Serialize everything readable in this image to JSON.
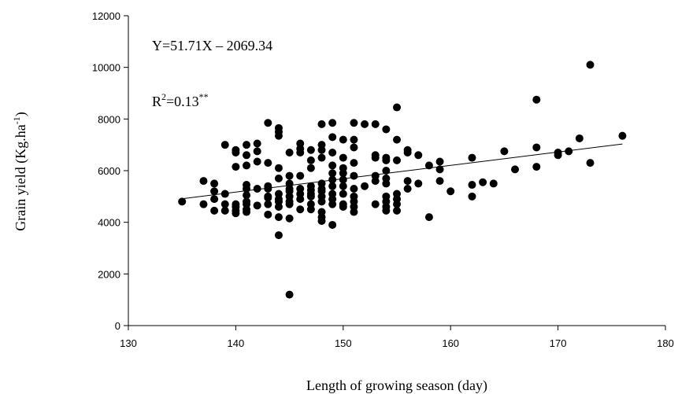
{
  "chart_data": {
    "type": "scatter",
    "xlabel": "Length of growing season (day)",
    "ylabel": [
      "Grain yield (Kg.ha",
      "-1",
      ")"
    ],
    "equation": "Y=51.71X – 2069.34",
    "r2": [
      "R",
      "2",
      "=0.13",
      "**"
    ],
    "color": "#000000",
    "xlim": [
      130,
      180
    ],
    "xticks": [
      130,
      140,
      150,
      160,
      170,
      180
    ],
    "ylim": [
      0,
      12000
    ],
    "yticks": [
      0,
      2000,
      4000,
      6000,
      8000,
      10000,
      12000
    ],
    "trendline": {
      "x": [
        135,
        176
      ],
      "values": [
        4911.5,
        7031.6
      ]
    },
    "x": [
      135,
      137,
      137,
      138,
      138,
      138,
      138,
      139,
      139,
      139,
      139,
      140,
      140,
      140,
      140,
      140,
      140,
      140,
      141,
      141,
      141,
      141,
      141,
      141,
      141,
      141,
      141,
      141,
      142,
      142,
      142,
      142,
      142,
      143,
      143,
      143,
      143,
      143,
      143,
      143,
      143,
      144,
      144,
      144,
      144,
      144,
      144,
      144,
      144,
      144,
      144,
      144,
      145,
      145,
      145,
      145,
      145,
      145,
      145,
      145,
      145,
      145,
      146,
      146,
      146,
      146,
      146,
      146,
      146,
      146,
      147,
      147,
      147,
      147,
      147,
      147,
      147,
      147,
      147,
      148,
      148,
      148,
      148,
      148,
      148,
      148,
      148,
      148,
      148,
      148,
      148,
      149,
      149,
      149,
      149,
      149,
      149,
      149,
      149,
      149,
      149,
      149,
      150,
      150,
      150,
      150,
      150,
      150,
      150,
      150,
      150,
      151,
      151,
      151,
      151,
      151,
      151,
      151,
      151,
      151,
      151,
      152,
      152,
      153,
      153,
      153,
      153,
      153,
      153,
      154,
      154,
      154,
      154,
      154,
      154,
      154,
      154,
      154,
      154,
      155,
      155,
      155,
      155,
      155,
      155,
      155,
      156,
      156,
      156,
      156,
      157,
      157,
      158,
      158,
      159,
      159,
      159,
      160,
      162,
      162,
      162,
      163,
      164,
      165,
      166,
      168,
      168,
      168,
      170,
      170,
      171,
      172,
      173,
      173,
      176
    ],
    "values": [
      4800,
      5600,
      4700,
      5500,
      5200,
      4900,
      4450,
      7000,
      5100,
      4700,
      4450,
      6800,
      6700,
      6150,
      4700,
      4600,
      4450,
      4350,
      7000,
      6600,
      6200,
      5450,
      5300,
      5050,
      4800,
      4700,
      4500,
      4400,
      7050,
      6750,
      6350,
      5300,
      4650,
      7850,
      6300,
      5400,
      5300,
      5000,
      4950,
      4700,
      4300,
      7650,
      7500,
      7350,
      6100,
      5700,
      5100,
      4900,
      4800,
      4600,
      4200,
      3500,
      6700,
      5800,
      5500,
      5300,
      5200,
      5000,
      4800,
      4700,
      4150,
      1200,
      7050,
      6850,
      6700,
      5800,
      5300,
      5100,
      4900,
      4500,
      6800,
      6400,
      6100,
      5400,
      5250,
      5100,
      5000,
      4700,
      4500,
      7800,
      7000,
      6800,
      6500,
      5500,
      5300,
      5200,
      5000,
      4800,
      4400,
      4200,
      4050,
      7850,
      7300,
      6700,
      6200,
      5900,
      5650,
      5400,
      5100,
      4900,
      4700,
      3900,
      7200,
      6500,
      6100,
      5900,
      5650,
      5400,
      5100,
      4700,
      4600,
      7850,
      7200,
      6900,
      6300,
      5800,
      5300,
      5000,
      4800,
      4600,
      4400,
      7800,
      5400,
      7800,
      6600,
      6500,
      5800,
      5600,
      4700,
      7600,
      6500,
      6400,
      6000,
      5700,
      5500,
      5000,
      4800,
      4600,
      4450,
      8450,
      7200,
      6400,
      5100,
      4900,
      4700,
      4450,
      6800,
      6700,
      5600,
      5300,
      6600,
      5500,
      6200,
      4200,
      6350,
      6050,
      5600,
      5200,
      6500,
      5450,
      5000,
      5550,
      5500,
      6750,
      6050,
      8750,
      6900,
      6150,
      6700,
      6600,
      6750,
      7250,
      10100,
      6300,
      7350
    ]
  }
}
